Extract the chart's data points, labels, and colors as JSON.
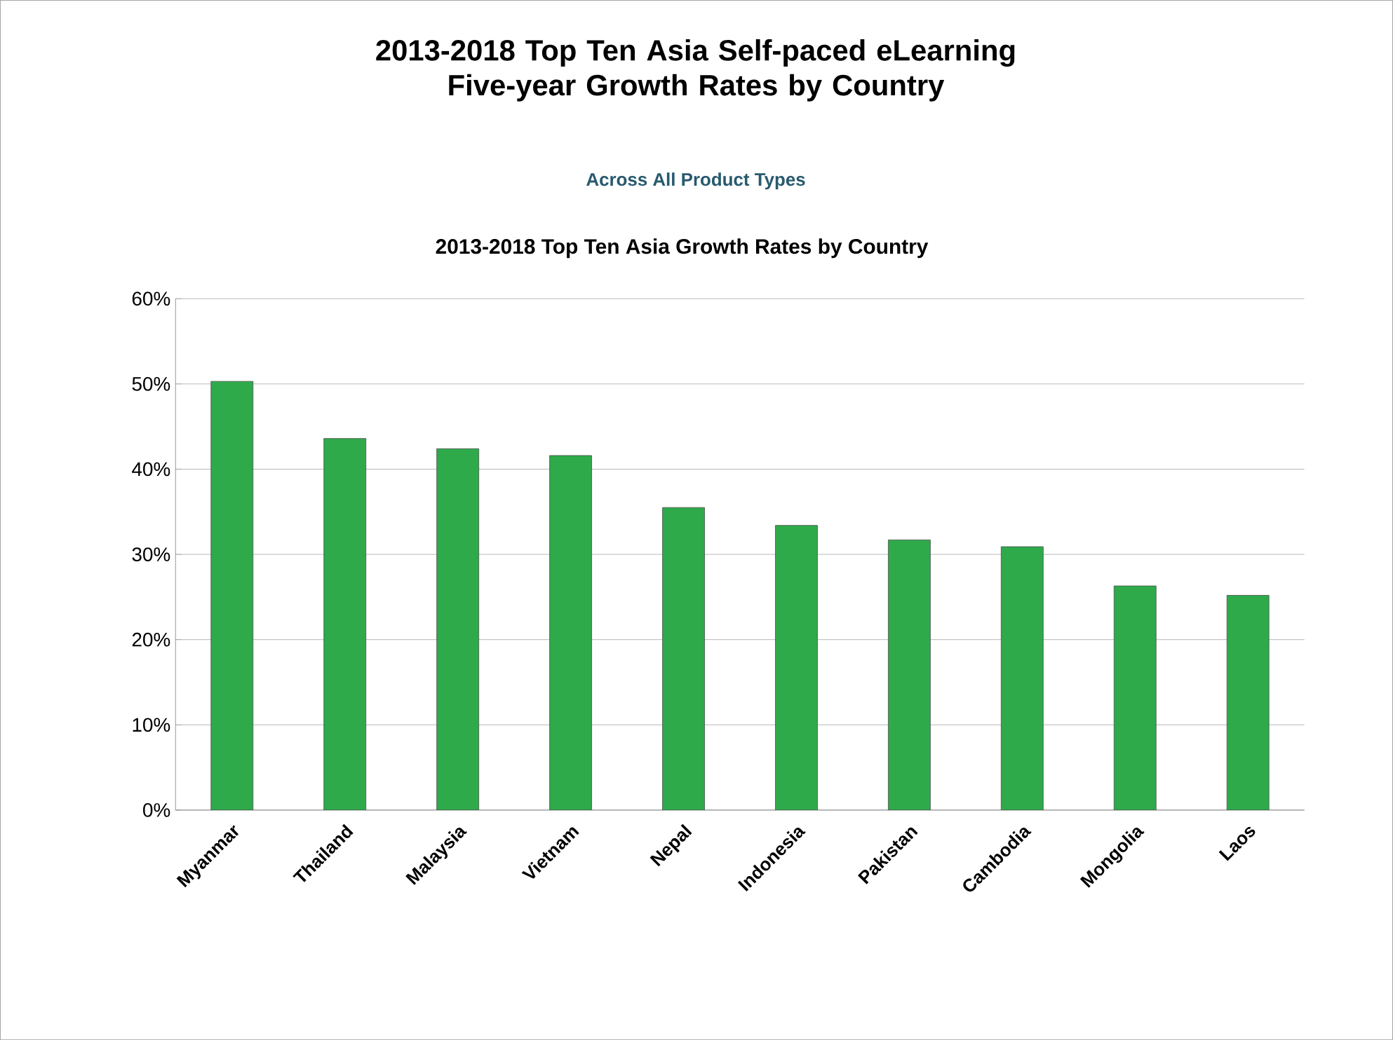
{
  "chart_data": {
    "type": "bar",
    "title": "2013-2018 Top Ten Asia Self-paced eLearning Five-year Growth Rates by Country",
    "subtitle": "Across All Product Types",
    "annotations": [
      "2013-2018 Top Ten Asia Growth Rates by Country"
    ],
    "categories": [
      "Myanmar",
      "Thailand",
      "Malaysia",
      "Vietnam",
      "Nepal",
      "Indonesia",
      "Pakistan",
      "Cambodia",
      "Mongolia",
      "Laos"
    ],
    "values": [
      50.3,
      43.6,
      42.4,
      41.6,
      35.5,
      33.4,
      31.7,
      30.9,
      26.3,
      25.2
    ],
    "color": "#2eaa4a",
    "ylim": [
      0,
      60
    ],
    "yticks": [
      {
        "value": 0,
        "label": "0%"
      },
      {
        "value": 10,
        "label": "10%"
      },
      {
        "value": 20,
        "label": "20%"
      },
      {
        "value": 30,
        "label": "30%"
      },
      {
        "value": 40,
        "label": "40%"
      },
      {
        "value": 50,
        "label": "50%"
      },
      {
        "value": 60,
        "label": "60%"
      }
    ],
    "grid": "y"
  }
}
